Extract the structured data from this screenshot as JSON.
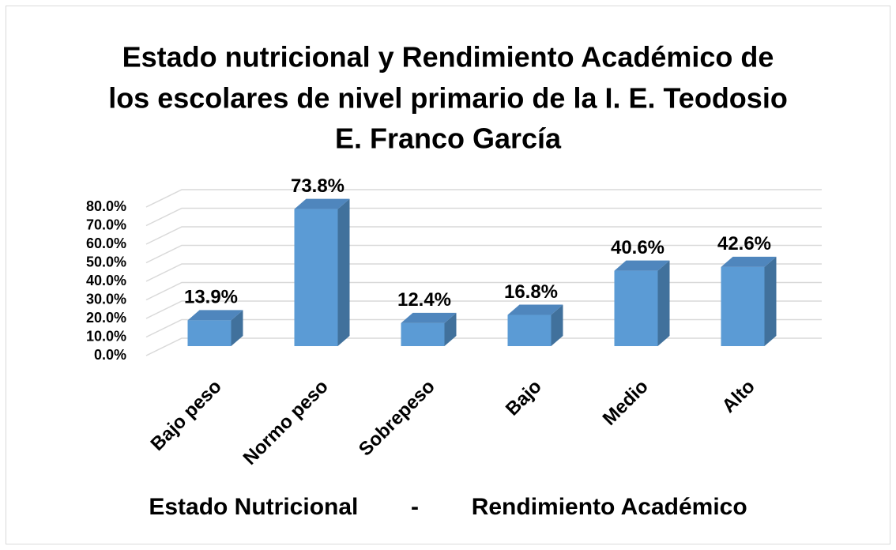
{
  "chart_data": {
    "type": "bar3d",
    "title": [
      "Estado nutricional y Rendimiento Académico de",
      "los escolares de nivel primario de la I. E. Teodosio",
      "E. Franco García"
    ],
    "x_label": "Estado Nutricional        -        Rendimiento Académico",
    "categories": [
      "Bajo peso",
      "Normo peso",
      "Sobrepeso",
      "Bajo",
      "Medio",
      "Alto"
    ],
    "values": [
      13.9,
      73.8,
      12.4,
      16.8,
      40.6,
      42.6
    ],
    "value_labels": [
      "13.9%",
      "73.8%",
      "12.4%",
      "16.8%",
      "40.6%",
      "42.6%"
    ],
    "color": "#5b9bd5",
    "ylim": [
      0,
      80
    ],
    "yticks": [
      {
        "value": 0,
        "label": "0.0%"
      },
      {
        "value": 10,
        "label": "10.0%"
      },
      {
        "value": 20,
        "label": "20.0%"
      },
      {
        "value": 30,
        "label": "30.0%"
      },
      {
        "value": 40,
        "label": "40.0%"
      },
      {
        "value": 50,
        "label": "50.0%"
      },
      {
        "value": 60,
        "label": "60.0%"
      },
      {
        "value": 70,
        "label": "70.0%"
      },
      {
        "value": 80,
        "label": "80.0%"
      }
    ],
    "grid": true
  }
}
